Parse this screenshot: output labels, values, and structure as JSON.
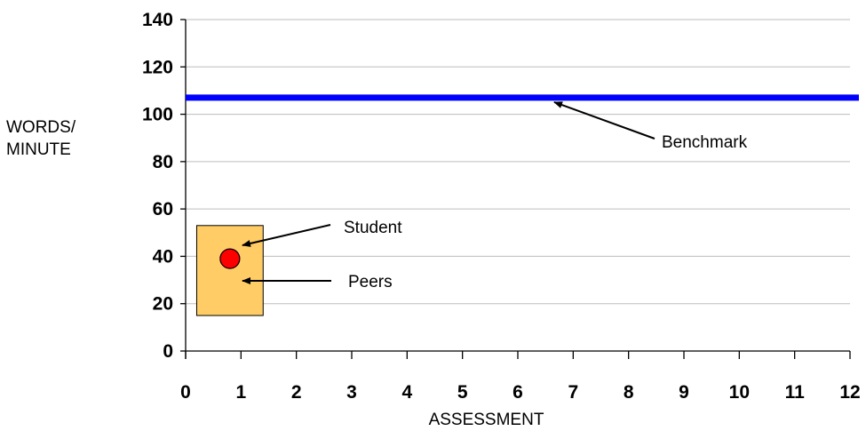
{
  "chart_data": {
    "type": "scatter",
    "xlabel": "ASSESSMENT",
    "ylabel": "WORDS/\nMINUTE",
    "xlim": [
      0,
      12
    ],
    "ylim": [
      0,
      140
    ],
    "x_ticks": [
      0,
      1,
      2,
      3,
      4,
      5,
      6,
      7,
      8,
      9,
      10,
      11,
      12
    ],
    "y_ticks": [
      0,
      20,
      40,
      60,
      80,
      100,
      120,
      140
    ],
    "grid": "horizontal",
    "benchmark": {
      "label": "Benchmark",
      "value": 107,
      "color": "#0000ff"
    },
    "peers": {
      "label": "Peers",
      "x_range": [
        0.2,
        1.4
      ],
      "y_range": [
        15,
        53
      ],
      "color": "#ffcc66"
    },
    "student": {
      "label": "Student",
      "x": 0.8,
      "y": 39,
      "color": "#ff0000"
    }
  }
}
